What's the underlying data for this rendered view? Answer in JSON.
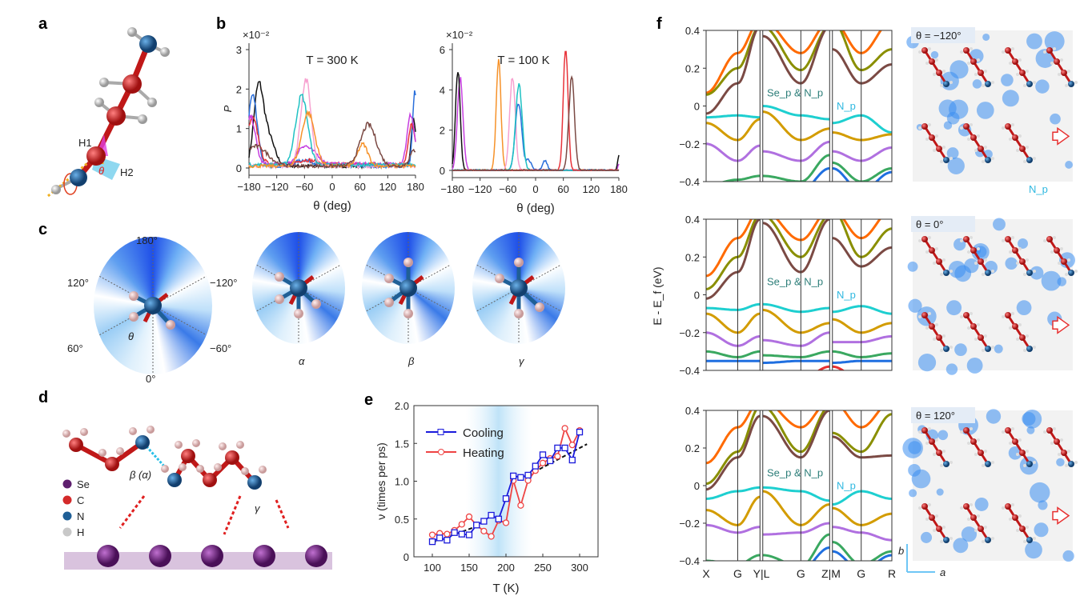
{
  "panel_labels": {
    "a": "a",
    "b": "b",
    "c": "c",
    "d": "d",
    "e": "e",
    "f": "f"
  },
  "panel_a": {
    "h1": "H1",
    "h2": "H2",
    "theta": "θ"
  },
  "panel_c": {
    "angles": {
      "top": "180°",
      "upper_left": "120°",
      "upper_right": "−120°",
      "lower_left": "60°",
      "lower_right": "−60°",
      "bottom": "0°"
    },
    "theta": "θ",
    "states": [
      "α",
      "β",
      "γ"
    ]
  },
  "panel_d": {
    "legend": [
      {
        "label": "Se",
        "color": "#5e1f6e"
      },
      {
        "label": "C",
        "color": "#d42a2a"
      },
      {
        "label": "N",
        "color": "#1f5f96"
      },
      {
        "label": "H",
        "color": "#c8c8c8"
      }
    ],
    "beta_label": "β (α)",
    "gamma_label": "γ"
  },
  "chart_data": [
    {
      "type": "line",
      "id": "b-300K",
      "title": "T = 300 K",
      "xlabel": "θ (deg)",
      "ylabel": "P",
      "yscale_label": "×10⁻²",
      "xlim": [
        -180,
        180
      ],
      "ylim": [
        0,
        3
      ],
      "xticks": [
        -180,
        -120,
        -60,
        0,
        60,
        120,
        180
      ],
      "yticks": [
        0,
        1,
        2,
        3
      ],
      "series": [
        {
          "color": "#111111",
          "baseline": 0.05,
          "peaks": [
            [
              -160,
              1.8,
              10
            ],
            [
              -140,
              0.8,
              14
            ],
            [
              176,
              1.2,
              5
            ]
          ]
        },
        {
          "color": "#2a6fdb",
          "baseline": 0.05,
          "peaks": [
            [
              -172,
              1.8,
              10
            ],
            [
              -60,
              0.15,
              20
            ],
            [
              179,
              1.9,
              5
            ]
          ]
        },
        {
          "color": "#e8333a",
          "baseline": 0.1,
          "peaks": [
            [
              -172,
              1.15,
              12
            ],
            [
              -55,
              0.1,
              20
            ],
            [
              172,
              1.0,
              7
            ]
          ]
        },
        {
          "color": "#c63fe0",
          "baseline": 0.1,
          "peaks": [
            [
              -176,
              1.2,
              10
            ],
            [
              -62,
              0.45,
              14
            ],
            [
              -35,
              0.2,
              12
            ],
            [
              170,
              1.25,
              8
            ]
          ]
        },
        {
          "color": "#f7a1d0",
          "baseline": 0.05,
          "peaks": [
            [
              -57,
              2.2,
              11
            ]
          ]
        },
        {
          "color": "#1fc1c3",
          "baseline": 0.08,
          "peaks": [
            [
              -66,
              1.75,
              13
            ]
          ]
        },
        {
          "color": "#f6922a",
          "baseline": 0.05,
          "peaks": [
            [
              -52,
              1.35,
              14
            ],
            [
              66,
              0.55,
              11
            ]
          ]
        },
        {
          "color": "#7b4a44",
          "baseline": 0.05,
          "peaks": [
            [
              -165,
              0.5,
              25
            ],
            [
              78,
              1.05,
              17
            ],
            [
              178,
              0.4,
              10
            ]
          ]
        }
      ]
    },
    {
      "type": "line",
      "id": "b-100K",
      "title": "T = 100 K",
      "xlabel": "θ (deg)",
      "yscale_label": "×10⁻²",
      "xlim": [
        -180,
        180
      ],
      "ylim": [
        0,
        6
      ],
      "xticks": [
        -180,
        -120,
        -60,
        0,
        60,
        120,
        180
      ],
      "yticks": [
        0,
        2,
        4,
        6
      ],
      "series": [
        {
          "color": "#c63fe0",
          "baseline": 0,
          "peaks": [
            [
              -163,
              4.6,
              6
            ],
            [
              180,
              0.3,
              2
            ]
          ]
        },
        {
          "color": "#111111",
          "baseline": 0,
          "peaks": [
            [
              -168,
              5.0,
              5
            ],
            [
              180,
              0.8,
              2.5
            ]
          ]
        },
        {
          "color": "#f6922a",
          "baseline": 0,
          "peaks": [
            [
              -80,
              5.6,
              5
            ]
          ]
        },
        {
          "color": "#f7a1d0",
          "baseline": 0,
          "peaks": [
            [
              -50,
              4.7,
              6
            ]
          ]
        },
        {
          "color": "#2a6fdb",
          "baseline": 0,
          "peaks": [
            [
              -37,
              3.4,
              7
            ],
            [
              -15,
              0.5,
              6
            ],
            [
              20,
              0.5,
              5
            ]
          ]
        },
        {
          "color": "#1fc1c3",
          "baseline": 0,
          "peaks": [
            [
              -36,
              4.3,
              7
            ]
          ]
        },
        {
          "color": "#e8333a",
          "baseline": 0,
          "peaks": [
            [
              65,
              6.2,
              5
            ]
          ]
        },
        {
          "color": "#7b4a44",
          "baseline": 0,
          "peaks": [
            [
              78,
              4.7,
              6
            ]
          ]
        }
      ]
    },
    {
      "type": "line",
      "id": "e",
      "xlabel": "T (K)",
      "ylabel": "ν (times per ps)",
      "xlim": [
        75,
        325
      ],
      "ylim": [
        0,
        2.0
      ],
      "xticks": [
        100,
        150,
        200,
        250,
        300
      ],
      "yticks": [
        "0",
        "0.5",
        "1.0",
        "1.5",
        "2.0"
      ],
      "shaded_region": [
        145,
        235
      ],
      "x": [
        100,
        110,
        120,
        130,
        140,
        150,
        160,
        170,
        180,
        190,
        200,
        210,
        220,
        230,
        240,
        250,
        260,
        270,
        280,
        290,
        300
      ],
      "series": [
        {
          "name": "Cooling",
          "color": "#1a1adb",
          "marker": "square",
          "values": [
            0.2,
            0.25,
            0.22,
            0.32,
            0.3,
            0.29,
            0.42,
            0.47,
            0.55,
            0.5,
            0.77,
            1.07,
            1.05,
            1.08,
            1.2,
            1.35,
            1.27,
            1.44,
            1.44,
            1.28,
            1.65
          ]
        },
        {
          "name": "Heating",
          "color": "#ee4444",
          "marker": "circle",
          "values": [
            0.29,
            0.31,
            0.3,
            0.35,
            0.43,
            0.53,
            0.42,
            0.34,
            0.27,
            0.48,
            0.45,
            1.01,
            0.68,
            1.01,
            1.14,
            1.24,
            1.3,
            1.33,
            1.7,
            1.48,
            1.67
          ]
        }
      ],
      "fits": [
        {
          "x": [
            100,
            165
          ],
          "y": [
            0.19,
            0.42
          ]
        },
        {
          "x": [
            230,
            310
          ],
          "y": [
            1.08,
            1.49
          ]
        }
      ],
      "legend_placement": "top-left"
    },
    {
      "type": "line",
      "id": "f-bands",
      "ylabel": "E - E_f (eV)",
      "ylim": [
        -0.4,
        0.4
      ],
      "yticks": [
        "−0.4",
        "−0.2",
        "0",
        "0.2",
        "0.4"
      ],
      "kpoints": [
        "X",
        "G",
        "Y|L",
        "G",
        "Z|M",
        "G",
        "R"
      ],
      "band_colors": [
        "#ff6a00",
        "#8a8f00",
        "#7b4a44",
        "#1ecfd0",
        "#d39c00",
        "#b070e0",
        "#3aa860",
        "#1f6fe0",
        "#e83030"
      ],
      "panels": [
        {
          "theta_label": "θ = −120°",
          "band_label": "Se_p & N_p",
          "np_label": "N_p",
          "image_label": "N_p",
          "bands": [
            [
              0.07,
              0.28,
              0.45,
              0.45,
              0.28,
              0.45,
              0.45,
              0.28,
              0.45
            ],
            [
              0.06,
              0.2,
              0.42,
              0.42,
              0.19,
              0.42,
              0.45,
              0.19,
              0.3
            ],
            [
              -0.04,
              0.12,
              0.42,
              0.37,
              0.12,
              0.42,
              0.3,
              0.12,
              0.22
            ],
            [
              -0.06,
              -0.05,
              -0.06,
              0.0,
              -0.05,
              -0.07,
              -0.09,
              -0.05,
              -0.14
            ],
            [
              -0.09,
              -0.18,
              -0.07,
              -0.03,
              -0.18,
              -0.12,
              -0.14,
              -0.18,
              -0.15
            ],
            [
              -0.2,
              -0.29,
              -0.21,
              -0.24,
              -0.29,
              -0.19,
              -0.24,
              -0.29,
              -0.22
            ],
            [
              -0.42,
              -0.39,
              -0.37,
              -0.37,
              -0.4,
              -0.26,
              -0.3,
              -0.4,
              -0.33
            ],
            [
              -0.5,
              -0.5,
              -0.5,
              -0.5,
              -0.45,
              -0.33,
              -0.33,
              -0.45,
              -0.35
            ]
          ]
        },
        {
          "theta_label": "θ = 0°",
          "band_label": "Se_p & N_p",
          "np_label": "N_p",
          "bands": [
            [
              0.1,
              0.3,
              0.45,
              0.45,
              0.29,
              0.45,
              0.45,
              0.3,
              0.45
            ],
            [
              0.03,
              0.2,
              0.42,
              0.42,
              0.2,
              0.42,
              0.45,
              0.2,
              0.35
            ],
            [
              -0.02,
              0.12,
              0.4,
              0.38,
              0.12,
              0.4,
              0.3,
              0.15,
              0.25
            ],
            [
              -0.07,
              -0.08,
              -0.05,
              -0.05,
              -0.09,
              -0.07,
              -0.09,
              -0.06,
              -0.1
            ],
            [
              -0.1,
              -0.2,
              -0.1,
              -0.08,
              -0.2,
              -0.15,
              -0.13,
              -0.2,
              -0.15
            ],
            [
              -0.2,
              -0.27,
              -0.22,
              -0.24,
              -0.27,
              -0.2,
              -0.25,
              -0.25,
              -0.22
            ],
            [
              -0.3,
              -0.33,
              -0.3,
              -0.32,
              -0.33,
              -0.3,
              -0.3,
              -0.33,
              -0.31
            ],
            [
              -0.35,
              -0.35,
              -0.35,
              -0.36,
              -0.35,
              -0.35,
              -0.36,
              -0.35,
              -0.35
            ],
            [
              -0.5,
              -0.5,
              -0.5,
              -0.5,
              -0.45,
              -0.38,
              -0.38,
              -0.45,
              -0.5
            ]
          ]
        },
        {
          "theta_label": "θ = 120°",
          "band_label": "Se_p & N_p",
          "np_label": "N_p",
          "bands": [
            [
              0.12,
              0.31,
              0.45,
              0.45,
              0.31,
              0.45,
              0.45,
              0.31,
              0.45
            ],
            [
              0.01,
              0.18,
              0.42,
              0.42,
              0.18,
              0.42,
              0.28,
              0.18,
              0.38
            ],
            [
              -0.02,
              0.15,
              0.37,
              0.37,
              0.15,
              0.4,
              0.26,
              0.15,
              0.16
            ],
            [
              -0.07,
              -0.03,
              -0.01,
              -0.01,
              -0.03,
              -0.08,
              -0.1,
              -0.03,
              -0.07
            ],
            [
              -0.13,
              -0.21,
              -0.06,
              -0.03,
              -0.21,
              -0.1,
              -0.12,
              -0.21,
              -0.15
            ],
            [
              -0.21,
              -0.25,
              -0.22,
              -0.26,
              -0.25,
              -0.2,
              -0.22,
              -0.25,
              -0.29
            ],
            [
              -0.4,
              -0.42,
              -0.37,
              -0.37,
              -0.43,
              -0.26,
              -0.3,
              -0.42,
              -0.35
            ],
            [
              -0.5,
              -0.5,
              -0.5,
              -0.5,
              -0.45,
              -0.33,
              -0.35,
              -0.45,
              -0.37
            ]
          ]
        }
      ]
    }
  ],
  "axes_f": {
    "b": "b",
    "a": "a"
  }
}
